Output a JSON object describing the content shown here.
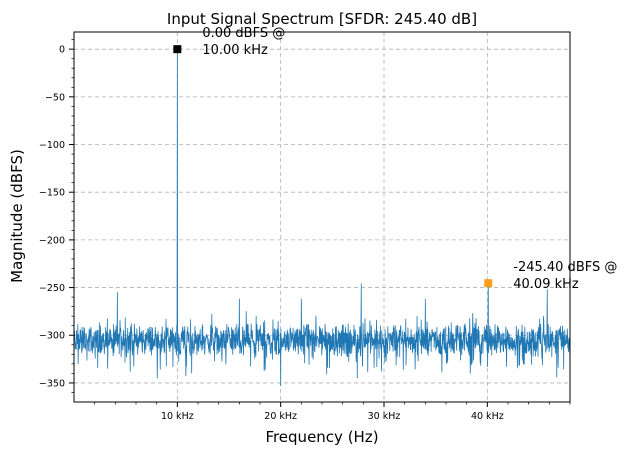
{
  "chart_data": {
    "type": "line",
    "title": "Input Signal Spectrum [SFDR: 245.40 dB]",
    "xlabel": "Frequency (Hz)",
    "ylabel": "Magnitude (dBFS)",
    "xlim": [
      0,
      48000
    ],
    "ylim": [
      -370,
      18
    ],
    "x_ticks": [
      {
        "value": 10000,
        "label": "10 kHz"
      },
      {
        "value": 20000,
        "label": "20 kHz"
      },
      {
        "value": 30000,
        "label": "30 kHz"
      },
      {
        "value": 40000,
        "label": "40 kHz"
      }
    ],
    "y_ticks": [
      {
        "value": 0,
        "label": "0"
      },
      {
        "value": -50,
        "label": "−50"
      },
      {
        "value": -100,
        "label": "−100"
      },
      {
        "value": -150,
        "label": "−150"
      },
      {
        "value": -200,
        "label": "−200"
      },
      {
        "value": -250,
        "label": "−250"
      },
      {
        "value": -300,
        "label": "−300"
      },
      {
        "value": -350,
        "label": "−350"
      }
    ],
    "grid": true,
    "grid_style": "dashed",
    "series": [
      {
        "color": "#1f77b4",
        "noise_floor_mean": -305,
        "noise_floor_range": [
          -345,
          -270
        ],
        "fundamental": {
          "x": 10000,
          "y": 0
        },
        "spurs": [
          {
            "x": 4200,
            "y": -255
          },
          {
            "x": 16000,
            "y": -262
          },
          {
            "x": 22000,
            "y": -262
          },
          {
            "x": 27800,
            "y": -246
          },
          {
            "x": 34000,
            "y": -262
          },
          {
            "x": 40090,
            "y": -245.4
          },
          {
            "x": 45800,
            "y": -252
          }
        ],
        "floor_dips": [
          {
            "x": 10000,
            "y": -292
          },
          {
            "x": 20000,
            "y": -353
          }
        ]
      }
    ],
    "markers": [
      {
        "x": 10000,
        "y": 0,
        "color": "#000000",
        "label_line1": "0.00 dBFS @",
        "label_line2": "10.00 kHz"
      },
      {
        "x": 40090,
        "y": -245.4,
        "color": "#ff9f1c",
        "label_line1": "-245.40 dBFS @",
        "label_line2": "40.09 kHz"
      }
    ]
  }
}
